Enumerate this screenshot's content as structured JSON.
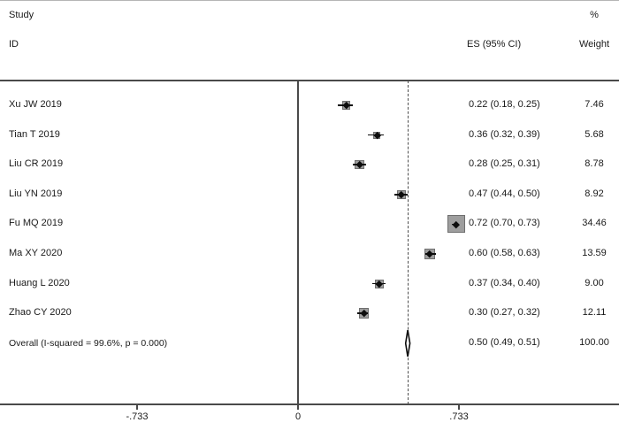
{
  "header": {
    "col_study": "Study",
    "col_id": "ID",
    "col_pct": "%",
    "col_es": "ES (95% CI)",
    "col_weight": "Weight"
  },
  "chart_data": {
    "type": "forest-plot",
    "x_axis": {
      "ticks": [
        {
          "value": -0.733,
          "label": "-.733"
        },
        {
          "value": 0,
          "label": "0"
        },
        {
          "value": 0.733,
          "label": ".733"
        }
      ],
      "zero_line": 0,
      "overall_dashed_line": 0.5,
      "xlim": [
        -0.99,
        1.46
      ]
    },
    "studies": [
      {
        "id": "Xu JW 2019",
        "es": 0.22,
        "ci_low": 0.18,
        "ci_high": 0.25,
        "es_label": "0.22 (0.18, 0.25)",
        "weight": 7.46,
        "weight_label": "7.46"
      },
      {
        "id": "Tian T 2019",
        "es": 0.36,
        "ci_low": 0.32,
        "ci_high": 0.39,
        "es_label": "0.36 (0.32, 0.39)",
        "weight": 5.68,
        "weight_label": "5.68"
      },
      {
        "id": "Liu CR 2019",
        "es": 0.28,
        "ci_low": 0.25,
        "ci_high": 0.31,
        "es_label": "0.28 (0.25, 0.31)",
        "weight": 8.78,
        "weight_label": "8.78"
      },
      {
        "id": "Liu YN 2019",
        "es": 0.47,
        "ci_low": 0.44,
        "ci_high": 0.5,
        "es_label": "0.47 (0.44, 0.50)",
        "weight": 8.92,
        "weight_label": "8.92"
      },
      {
        "id": "Fu MQ 2019",
        "es": 0.72,
        "ci_low": 0.7,
        "ci_high": 0.73,
        "es_label": "0.72 (0.70, 0.73)",
        "weight": 34.46,
        "weight_label": "34.46"
      },
      {
        "id": "Ma XY 2020",
        "es": 0.6,
        "ci_low": 0.58,
        "ci_high": 0.63,
        "es_label": "0.60 (0.58, 0.63)",
        "weight": 13.59,
        "weight_label": "13.59"
      },
      {
        "id": "Huang L 2020",
        "es": 0.37,
        "ci_low": 0.34,
        "ci_high": 0.4,
        "es_label": "0.37 (0.34, 0.40)",
        "weight": 9.0,
        "weight_label": "9.00"
      },
      {
        "id": "Zhao CY 2020",
        "es": 0.3,
        "ci_low": 0.27,
        "ci_high": 0.32,
        "es_label": "0.30 (0.27, 0.32)",
        "weight": 12.11,
        "weight_label": "12.11"
      }
    ],
    "overall": {
      "id": "Overall  (I-squared = 99.6%, p = 0.000)",
      "es": 0.5,
      "ci_low": 0.49,
      "ci_high": 0.51,
      "es_label": "0.50 (0.49, 0.51)",
      "weight_label": "100.00"
    }
  },
  "colors": {
    "text": "#1a1a1a",
    "line": "#4a4a4a",
    "box_fill": "#9e9e9e",
    "box_border": "#6f6f6f",
    "marker": "#0d0d0d",
    "diamond_fill": "#ffffff",
    "diamond_stroke": "#0d0d0d"
  }
}
